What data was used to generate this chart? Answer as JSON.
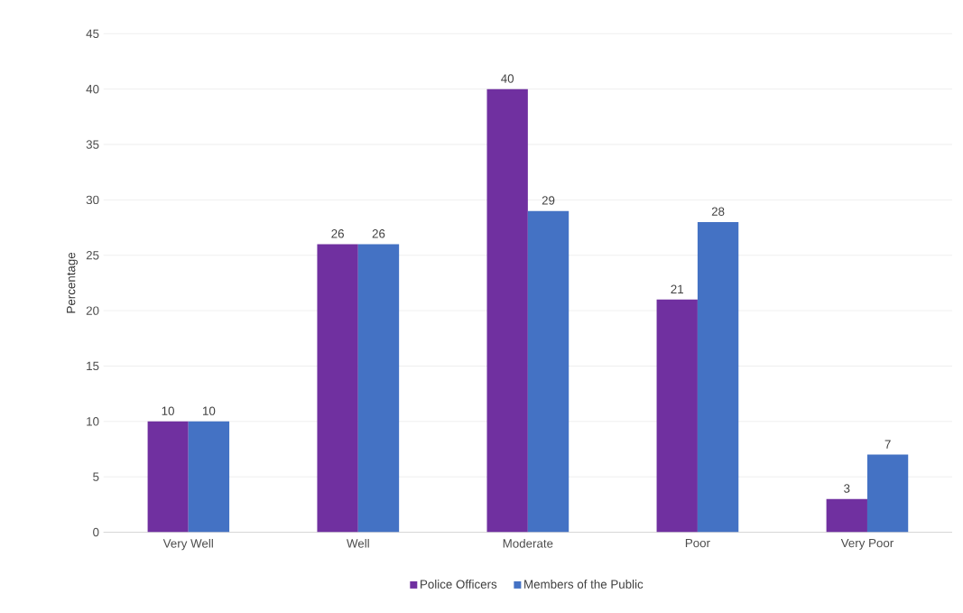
{
  "chart_data": {
    "type": "bar",
    "ylabel": "Percentage",
    "categories": [
      "Very Well",
      "Well",
      "Moderate",
      "Poor",
      "Very Poor"
    ],
    "series": [
      {
        "name": "Police Officers",
        "color": "#7030a0",
        "values": [
          10,
          26,
          40,
          21,
          3
        ]
      },
      {
        "name": "Members of the Public",
        "color": "#4472c4",
        "values": [
          10,
          26,
          29,
          28,
          7
        ]
      }
    ],
    "ylim": [
      0,
      45
    ],
    "yticks": [
      0,
      5,
      10,
      15,
      20,
      25,
      30,
      35,
      40,
      45
    ],
    "grid": "y",
    "legend": "bottom",
    "data_labels": true
  }
}
